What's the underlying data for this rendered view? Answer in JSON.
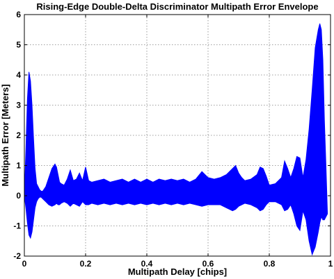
{
  "chart_data": {
    "type": "area",
    "title": "Rising-Edge Double-Delta Discriminator Multipath Error Envelope",
    "xlabel": "Multipath Delay [chips]",
    "ylabel": "Multipath Error [Meters]",
    "xlim": [
      0,
      1
    ],
    "ylim": [
      -2,
      6
    ],
    "xticks": [
      0,
      0.2,
      0.4,
      0.6,
      0.8,
      1
    ],
    "xtick_labels": [
      "0",
      "0.2",
      "0.4",
      "0.6",
      "0.8",
      "1"
    ],
    "yticks": [
      -2,
      -1,
      0,
      1,
      2,
      3,
      4,
      5,
      6
    ],
    "ytick_labels": [
      "-2",
      "-1",
      "0",
      "1",
      "2",
      "3",
      "4",
      "5",
      "6"
    ],
    "grid": true,
    "series_color": "#0000ff",
    "series": [
      {
        "x": [
          0.0,
          0.005,
          0.01,
          0.015,
          0.02,
          0.025,
          0.03,
          0.035,
          0.04,
          0.045,
          0.05,
          0.055,
          0.06,
          0.07,
          0.08,
          0.09,
          0.1,
          0.105,
          0.11,
          0.115,
          0.12,
          0.13,
          0.14,
          0.15,
          0.16,
          0.17,
          0.18,
          0.19,
          0.2,
          0.21,
          0.22,
          0.24,
          0.26,
          0.28,
          0.3,
          0.32,
          0.34,
          0.36,
          0.38,
          0.4,
          0.42,
          0.44,
          0.46,
          0.48,
          0.5,
          0.52,
          0.54,
          0.56,
          0.58,
          0.6,
          0.62,
          0.64,
          0.66,
          0.68,
          0.69,
          0.7,
          0.71,
          0.72,
          0.74,
          0.76,
          0.77,
          0.78,
          0.79,
          0.8,
          0.82,
          0.84,
          0.85,
          0.86,
          0.87,
          0.88,
          0.89,
          0.9,
          0.91,
          0.92,
          0.93,
          0.94,
          0.95,
          0.96,
          0.965,
          0.97,
          0.975,
          0.98,
          0.985,
          0.99
        ],
        "upper": [
          0.0,
          1.5,
          3.2,
          4.1,
          3.8,
          3.0,
          1.9,
          0.9,
          0.4,
          0.3,
          0.2,
          0.15,
          0.15,
          0.3,
          0.6,
          0.9,
          1.05,
          0.95,
          0.7,
          0.45,
          0.4,
          0.35,
          0.55,
          0.85,
          0.5,
          0.55,
          0.75,
          0.5,
          0.95,
          0.5,
          0.45,
          0.5,
          0.55,
          0.45,
          0.5,
          0.55,
          0.45,
          0.55,
          0.45,
          0.55,
          0.45,
          0.55,
          0.5,
          0.55,
          0.5,
          0.55,
          0.45,
          0.55,
          0.8,
          0.6,
          0.55,
          0.6,
          0.7,
          0.9,
          1.0,
          0.75,
          0.6,
          0.5,
          0.55,
          0.7,
          0.95,
          0.9,
          0.65,
          0.35,
          0.4,
          0.6,
          1.15,
          0.9,
          0.6,
          0.9,
          1.3,
          1.25,
          0.6,
          1.2,
          2.2,
          3.5,
          4.9,
          5.5,
          5.7,
          5.5,
          4.5,
          2.5,
          1.0,
          -0.6
        ],
        "lower": [
          0.0,
          -0.4,
          -0.9,
          -1.3,
          -1.4,
          -1.2,
          -0.8,
          -0.4,
          -0.2,
          -0.1,
          -0.05,
          -0.05,
          -0.1,
          -0.2,
          -0.3,
          -0.35,
          -0.3,
          -0.25,
          -0.3,
          -0.3,
          -0.25,
          -0.2,
          -0.25,
          -0.35,
          -0.25,
          -0.3,
          -0.35,
          -0.2,
          -0.3,
          -0.3,
          -0.25,
          -0.3,
          -0.25,
          -0.3,
          -0.25,
          -0.3,
          -0.25,
          -0.3,
          -0.25,
          -0.3,
          -0.25,
          -0.3,
          -0.25,
          -0.3,
          -0.25,
          -0.3,
          -0.25,
          -0.3,
          -0.35,
          -0.3,
          -0.3,
          -0.3,
          -0.4,
          -0.5,
          -0.45,
          -0.35,
          -0.3,
          -0.25,
          -0.3,
          -0.4,
          -0.5,
          -0.45,
          -0.3,
          -0.2,
          -0.2,
          -0.3,
          -0.5,
          -0.45,
          -0.3,
          -0.6,
          -1.0,
          -1.15,
          -0.5,
          -0.8,
          -1.5,
          -1.95,
          -1.7,
          -1.2,
          -0.9,
          -0.7,
          -0.8,
          -0.8,
          -0.7,
          -0.6
        ]
      }
    ]
  }
}
